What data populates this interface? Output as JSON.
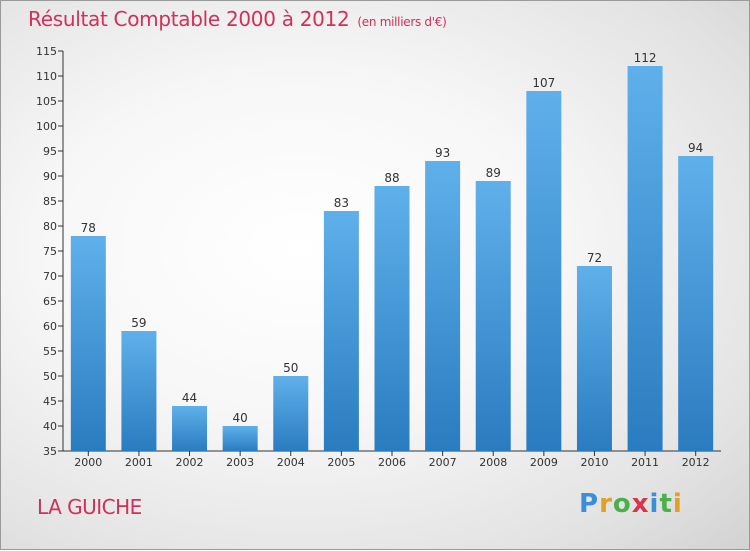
{
  "title": "Résultat Comptable 2000 à 2012",
  "subtitle": "(en milliers d'€)",
  "commune": "LA GUICHE",
  "logo": {
    "text": "Proxiti",
    "letters": [
      "P",
      "r",
      "o",
      "x",
      "i",
      "t",
      "i"
    ],
    "colors": [
      "#3a8fd8",
      "#e0a020",
      "#49b04a",
      "#d8344c",
      "#3a8fd8",
      "#49b04a",
      "#e0a020"
    ]
  },
  "chart_data": {
    "type": "bar",
    "title": "Résultat Comptable 2000 à 2012",
    "subtitle": "(en milliers d'€)",
    "categories": [
      "2000",
      "2001",
      "2002",
      "2003",
      "2004",
      "2005",
      "2006",
      "2007",
      "2008",
      "2009",
      "2010",
      "2011",
      "2012"
    ],
    "values": [
      78,
      59,
      44,
      40,
      50,
      83,
      88,
      93,
      89,
      107,
      72,
      112,
      94
    ],
    "ylim": [
      35,
      115
    ],
    "yticks": [
      35,
      40,
      45,
      50,
      55,
      60,
      65,
      70,
      75,
      80,
      85,
      90,
      95,
      100,
      105,
      110,
      115
    ],
    "grid": false,
    "bar_color_top": "#5fb0ea",
    "bar_color_bottom": "#2a7cc0"
  }
}
